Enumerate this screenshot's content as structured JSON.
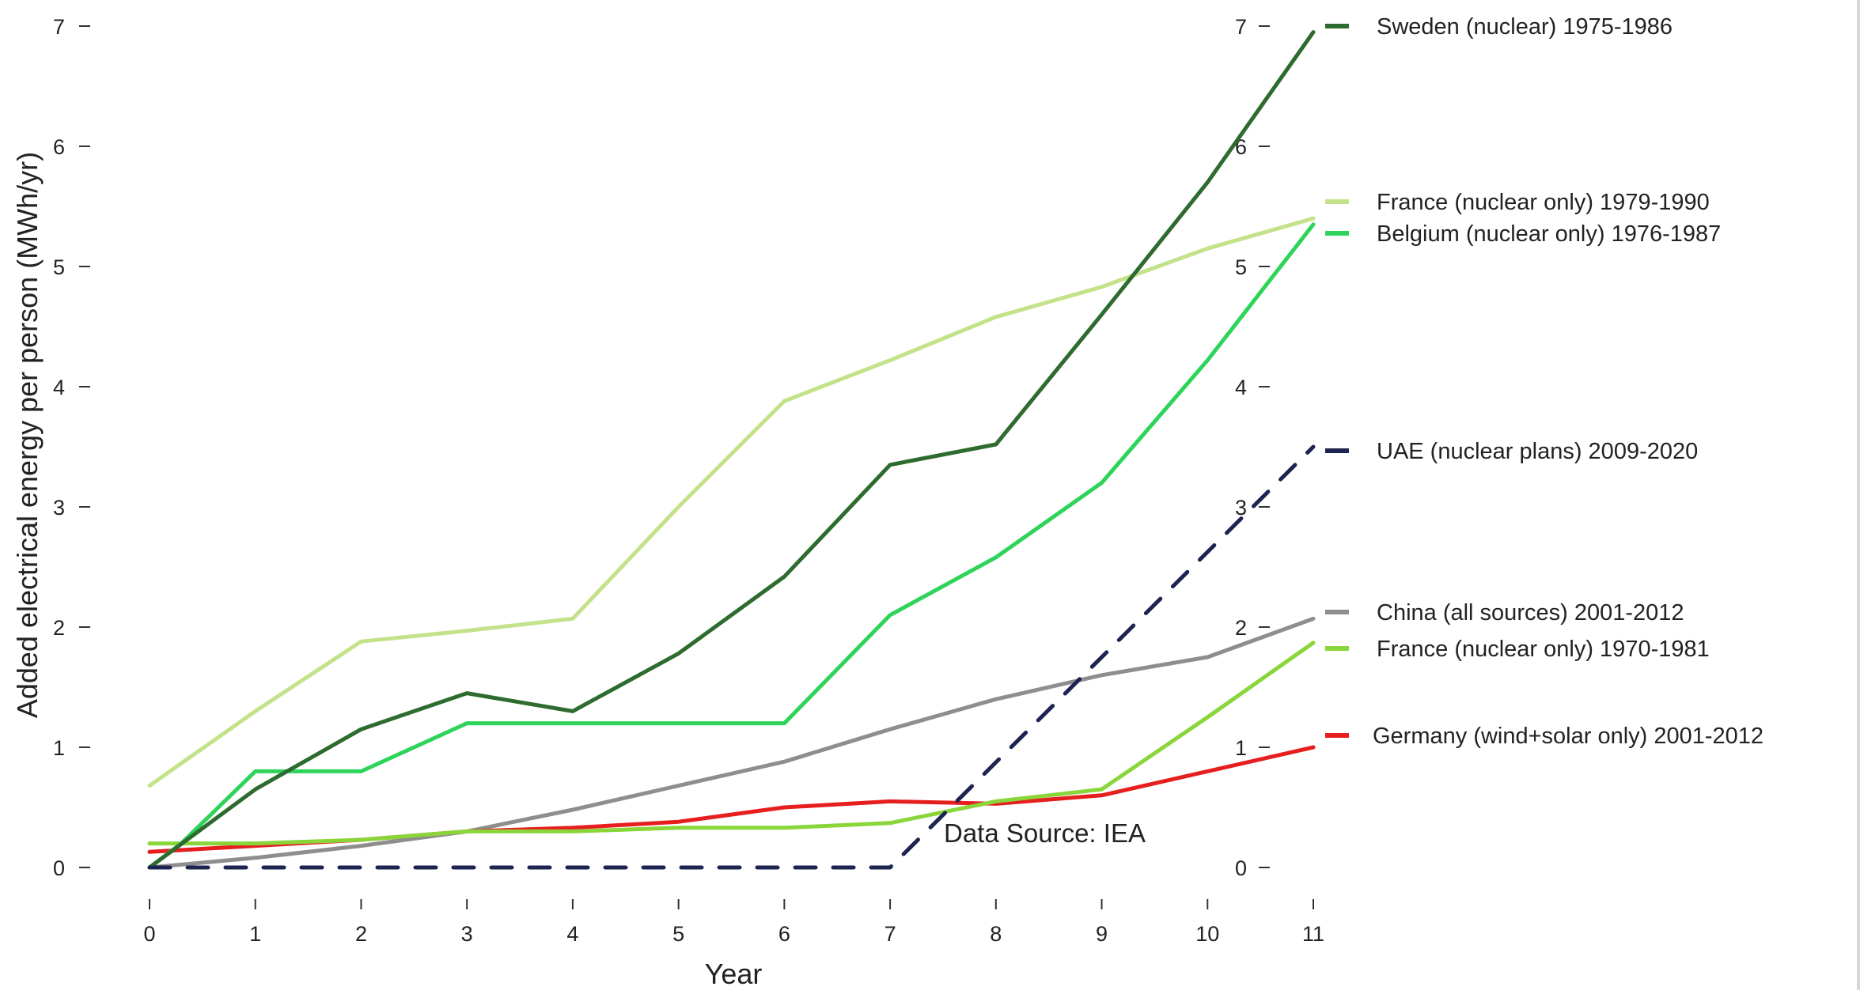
{
  "chart_data": {
    "type": "line",
    "xlabel": "Year",
    "ylabel": "Added electrical energy per person (MWh/yr)",
    "xlim": [
      0,
      11
    ],
    "ylim": [
      0,
      7
    ],
    "x_ticks": [
      "0",
      "1",
      "2",
      "3",
      "4",
      "5",
      "6",
      "7",
      "8",
      "9",
      "10",
      "11"
    ],
    "y_ticks": [
      "0",
      "1",
      "2",
      "3",
      "4",
      "5",
      "6",
      "7"
    ],
    "right_axis_ticks": [
      "0",
      "1",
      "2",
      "3",
      "4",
      "5",
      "6",
      "7"
    ],
    "grid": false,
    "annotation": "Data Source: IEA",
    "series": [
      {
        "name": "Sweden (nuclear) 1975-1986",
        "color": "#2e6b2e",
        "dash": false,
        "x": [
          0,
          1,
          2,
          3,
          4,
          5,
          6,
          7,
          8,
          9,
          10,
          11
        ],
        "y": [
          0.0,
          0.65,
          1.15,
          1.45,
          1.3,
          1.78,
          2.42,
          3.35,
          3.52,
          4.6,
          5.7,
          6.95
        ]
      },
      {
        "name": "France (nuclear only) 1979-1990",
        "color": "#c3e28a",
        "dash": false,
        "x": [
          0,
          1,
          2,
          3,
          4,
          5,
          6,
          7,
          8,
          9,
          10,
          11
        ],
        "y": [
          0.68,
          1.3,
          1.88,
          1.97,
          2.07,
          3.0,
          3.88,
          4.22,
          4.58,
          4.83,
          5.15,
          5.4
        ]
      },
      {
        "name": "Belgium (nuclear only) 1976-1987",
        "color": "#2ed45a",
        "dash": false,
        "x": [
          0,
          0.3,
          1,
          2,
          3,
          4,
          5,
          6,
          7,
          8,
          9,
          10,
          11
        ],
        "y": [
          0.0,
          0.2,
          0.8,
          0.8,
          1.2,
          1.2,
          1.2,
          1.2,
          2.1,
          2.58,
          3.2,
          4.22,
          5.35
        ]
      },
      {
        "name": "UAE (nuclear plans) 2009-2020",
        "color": "#1e2452",
        "dash": true,
        "x": [
          0,
          7,
          11
        ],
        "y": [
          0.0,
          0.0,
          3.5
        ]
      },
      {
        "name": "China (all sources) 2001-2012",
        "color": "#8e8e8e",
        "dash": false,
        "x": [
          0,
          1,
          2,
          3,
          4,
          5,
          6,
          7,
          8,
          9,
          10,
          11
        ],
        "y": [
          0.0,
          0.08,
          0.18,
          0.3,
          0.48,
          0.68,
          0.88,
          1.15,
          1.4,
          1.6,
          1.75,
          2.07
        ]
      },
      {
        "name": "France (nuclear only) 1970-1981",
        "color": "#8ad63a",
        "dash": false,
        "x": [
          0,
          1,
          2,
          3,
          4,
          5,
          6,
          7,
          8,
          9,
          10,
          11
        ],
        "y": [
          0.2,
          0.2,
          0.23,
          0.3,
          0.3,
          0.33,
          0.33,
          0.37,
          0.55,
          0.65,
          1.25,
          1.87
        ]
      },
      {
        "name": "Germany (wind+solar only) 2001-2012",
        "color": "#e61e1e",
        "dash": false,
        "x": [
          0,
          1,
          2,
          3,
          4,
          5,
          6,
          7,
          8,
          9,
          10,
          11
        ],
        "y": [
          0.13,
          0.18,
          0.23,
          0.3,
          0.33,
          0.38,
          0.5,
          0.55,
          0.53,
          0.6,
          0.8,
          1.0
        ]
      }
    ]
  }
}
